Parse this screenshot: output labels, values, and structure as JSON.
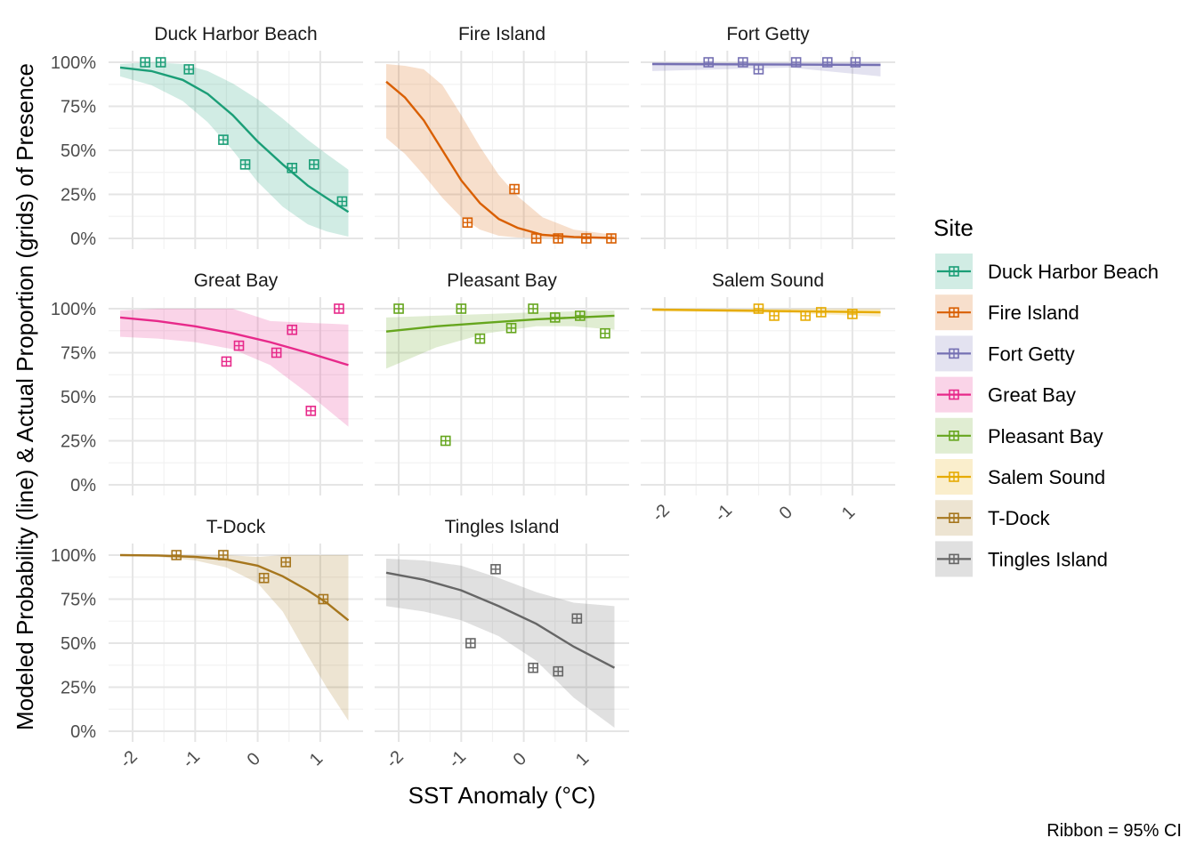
{
  "chart_data": {
    "type": "line",
    "x_label": "SST Anomaly (°C)",
    "y_label": "Modeled Probability (line) & Actual Proportion (grids) of Presence",
    "x_ticks": [
      -2,
      -1,
      0,
      1
    ],
    "x_tick_labels": [
      "-2",
      "-1",
      "0",
      "1"
    ],
    "x_range": [
      -2.2,
      1.5
    ],
    "y_range": [
      0,
      1
    ],
    "y_ticks": [
      0,
      0.25,
      0.5,
      0.75,
      1
    ],
    "y_tick_labels": [
      "0%",
      "25%",
      "50%",
      "75%",
      "100%"
    ],
    "legend_title": "Site",
    "legend_position": "right",
    "caption": "Ribbon = 95% CI",
    "grid": true,
    "panels": [
      {
        "name": "Duck Harbor Beach",
        "color": "#1B9E77",
        "curve": [
          [
            -2.2,
            0.97
          ],
          [
            -1.7,
            0.95
          ],
          [
            -1.2,
            0.9
          ],
          [
            -0.8,
            0.82
          ],
          [
            -0.4,
            0.7
          ],
          [
            0,
            0.55
          ],
          [
            0.4,
            0.42
          ],
          [
            0.8,
            0.3
          ],
          [
            1.1,
            0.23
          ],
          [
            1.45,
            0.15
          ]
        ],
        "lower": [
          [
            -2.2,
            0.92
          ],
          [
            -1.7,
            0.87
          ],
          [
            -1.2,
            0.78
          ],
          [
            -0.8,
            0.66
          ],
          [
            -0.4,
            0.5
          ],
          [
            0,
            0.32
          ],
          [
            0.4,
            0.18
          ],
          [
            0.8,
            0.08
          ],
          [
            1.1,
            0.04
          ],
          [
            1.45,
            0.01
          ]
        ],
        "upper": [
          [
            -2.2,
            0.99
          ],
          [
            -1.7,
            1.0
          ],
          [
            -1.2,
            0.99
          ],
          [
            -0.8,
            0.95
          ],
          [
            -0.4,
            0.88
          ],
          [
            0,
            0.79
          ],
          [
            0.4,
            0.68
          ],
          [
            0.8,
            0.56
          ],
          [
            1.1,
            0.48
          ],
          [
            1.45,
            0.39
          ]
        ],
        "points": [
          [
            -1.8,
            1.0
          ],
          [
            -1.55,
            1.0
          ],
          [
            -1.1,
            0.96
          ],
          [
            -0.55,
            0.56
          ],
          [
            -0.2,
            0.42
          ],
          [
            0.55,
            0.4
          ],
          [
            0.9,
            0.42
          ],
          [
            1.35,
            0.21
          ]
        ]
      },
      {
        "name": "Fire Island",
        "color": "#D95F02",
        "curve": [
          [
            -2.2,
            0.89
          ],
          [
            -1.9,
            0.8
          ],
          [
            -1.6,
            0.67
          ],
          [
            -1.3,
            0.5
          ],
          [
            -1.0,
            0.33
          ],
          [
            -0.7,
            0.2
          ],
          [
            -0.4,
            0.11
          ],
          [
            -0.1,
            0.06
          ],
          [
            0.3,
            0.02
          ],
          [
            0.8,
            0.008
          ],
          [
            1.45,
            0.002
          ]
        ],
        "lower": [
          [
            -2.2,
            0.57
          ],
          [
            -1.9,
            0.48
          ],
          [
            -1.6,
            0.36
          ],
          [
            -1.3,
            0.23
          ],
          [
            -1.0,
            0.12
          ],
          [
            -0.7,
            0.05
          ],
          [
            -0.4,
            0.015
          ],
          [
            -0.1,
            0.005
          ],
          [
            0.3,
            0
          ],
          [
            0.8,
            0
          ],
          [
            1.45,
            0
          ]
        ],
        "upper": [
          [
            -2.2,
            0.99
          ],
          [
            -1.9,
            0.98
          ],
          [
            -1.6,
            0.96
          ],
          [
            -1.3,
            0.87
          ],
          [
            -1.0,
            0.7
          ],
          [
            -0.7,
            0.52
          ],
          [
            -0.4,
            0.36
          ],
          [
            -0.1,
            0.24
          ],
          [
            0.3,
            0.12
          ],
          [
            0.8,
            0.05
          ],
          [
            1.45,
            0.02
          ]
        ],
        "points": [
          [
            -0.9,
            0.09
          ],
          [
            -0.15,
            0.28
          ],
          [
            0.2,
            0.0
          ],
          [
            0.55,
            0.0
          ],
          [
            1.0,
            0.0
          ],
          [
            1.4,
            0.0
          ]
        ]
      },
      {
        "name": "Fort Getty",
        "color": "#7570B3",
        "curve": [
          [
            -2.2,
            0.99
          ],
          [
            1.45,
            0.985
          ]
        ],
        "lower": [
          [
            -2.2,
            0.95
          ],
          [
            0,
            0.97
          ],
          [
            1.45,
            0.92
          ]
        ],
        "upper": [
          [
            -2.2,
            1.0
          ],
          [
            1.45,
            1.0
          ]
        ],
        "points": [
          [
            -1.3,
            1.0
          ],
          [
            -0.75,
            1.0
          ],
          [
            -0.5,
            0.96
          ],
          [
            0.1,
            1.0
          ],
          [
            0.6,
            1.0
          ],
          [
            1.05,
            1.0
          ]
        ]
      },
      {
        "name": "Great Bay",
        "color": "#E7298A",
        "curve": [
          [
            -2.2,
            0.95
          ],
          [
            -1.6,
            0.93
          ],
          [
            -1.0,
            0.9
          ],
          [
            -0.4,
            0.86
          ],
          [
            0.2,
            0.81
          ],
          [
            0.8,
            0.75
          ],
          [
            1.45,
            0.68
          ]
        ],
        "lower": [
          [
            -2.2,
            0.84
          ],
          [
            -1.6,
            0.83
          ],
          [
            -1.0,
            0.81
          ],
          [
            -0.4,
            0.77
          ],
          [
            0.2,
            0.68
          ],
          [
            0.8,
            0.52
          ],
          [
            1.45,
            0.33
          ]
        ],
        "upper": [
          [
            -2.2,
            0.99
          ],
          [
            -1.6,
            1.0
          ],
          [
            -1.0,
            1.0
          ],
          [
            -0.4,
            1.0
          ],
          [
            0.2,
            0.93
          ],
          [
            0.8,
            0.92
          ],
          [
            1.45,
            0.91
          ]
        ],
        "points": [
          [
            -0.5,
            0.7
          ],
          [
            -0.3,
            0.79
          ],
          [
            0.3,
            0.75
          ],
          [
            0.55,
            0.88
          ],
          [
            0.85,
            0.42
          ],
          [
            1.3,
            1.0
          ]
        ]
      },
      {
        "name": "Pleasant Bay",
        "color": "#66A61E",
        "curve": [
          [
            -2.2,
            0.87
          ],
          [
            -1.4,
            0.9
          ],
          [
            -0.6,
            0.92
          ],
          [
            0.2,
            0.94
          ],
          [
            1.45,
            0.96
          ]
        ],
        "lower": [
          [
            -2.2,
            0.66
          ],
          [
            -1.4,
            0.78
          ],
          [
            -0.6,
            0.86
          ],
          [
            0.2,
            0.9
          ],
          [
            0.8,
            0.9
          ],
          [
            1.45,
            0.88
          ]
        ],
        "upper": [
          [
            -2.2,
            0.95
          ],
          [
            -1.4,
            0.96
          ],
          [
            -0.6,
            0.97
          ],
          [
            0.2,
            0.98
          ],
          [
            1.45,
            0.99
          ]
        ],
        "points": [
          [
            -2.0,
            1.0
          ],
          [
            -1.25,
            0.25
          ],
          [
            -1.0,
            1.0
          ],
          [
            -0.7,
            0.83
          ],
          [
            -0.2,
            0.89
          ],
          [
            0.15,
            1.0
          ],
          [
            0.5,
            0.95
          ],
          [
            0.9,
            0.96
          ],
          [
            1.3,
            0.86
          ]
        ]
      },
      {
        "name": "Salem Sound",
        "color": "#E6AB02",
        "curve": [
          [
            -2.2,
            0.995
          ],
          [
            1.45,
            0.98
          ]
        ],
        "lower": [
          [
            -2.2,
            0.985
          ],
          [
            0,
            0.975
          ],
          [
            1.45,
            0.955
          ]
        ],
        "upper": [
          [
            -2.2,
            1.0
          ],
          [
            1.45,
            1.0
          ]
        ],
        "points": [
          [
            -0.5,
            1.0
          ],
          [
            -0.25,
            0.96
          ],
          [
            0.25,
            0.96
          ],
          [
            0.5,
            0.98
          ],
          [
            1.0,
            0.97
          ]
        ]
      },
      {
        "name": "T-Dock",
        "color": "#A6761D",
        "curve": [
          [
            -2.2,
            1.0
          ],
          [
            -1.6,
            0.998
          ],
          [
            -1.0,
            0.99
          ],
          [
            -0.5,
            0.975
          ],
          [
            0,
            0.94
          ],
          [
            0.4,
            0.88
          ],
          [
            0.8,
            0.8
          ],
          [
            1.1,
            0.73
          ],
          [
            1.45,
            0.63
          ]
        ],
        "lower": [
          [
            -2.2,
            0.995
          ],
          [
            -1.6,
            0.99
          ],
          [
            -1.0,
            0.97
          ],
          [
            -0.5,
            0.93
          ],
          [
            0,
            0.84
          ],
          [
            0.4,
            0.68
          ],
          [
            0.8,
            0.43
          ],
          [
            1.1,
            0.25
          ],
          [
            1.45,
            0.06
          ]
        ],
        "upper": [
          [
            -2.2,
            1.0
          ],
          [
            -0.5,
            1.0
          ],
          [
            0,
            0.99
          ],
          [
            0.4,
            1.0
          ],
          [
            0.8,
            1.0
          ],
          [
            1.45,
            1.0
          ]
        ],
        "points": [
          [
            -1.3,
            1.0
          ],
          [
            -0.55,
            1.0
          ],
          [
            0.1,
            0.87
          ],
          [
            0.45,
            0.96
          ],
          [
            1.05,
            0.75
          ]
        ]
      },
      {
        "name": "Tingles Island",
        "color": "#666666",
        "curve": [
          [
            -2.2,
            0.9
          ],
          [
            -1.6,
            0.86
          ],
          [
            -1.0,
            0.8
          ],
          [
            -0.4,
            0.71
          ],
          [
            0.2,
            0.61
          ],
          [
            0.8,
            0.48
          ],
          [
            1.45,
            0.36
          ]
        ],
        "lower": [
          [
            -2.2,
            0.71
          ],
          [
            -1.6,
            0.68
          ],
          [
            -1.0,
            0.63
          ],
          [
            -0.4,
            0.54
          ],
          [
            0.2,
            0.4
          ],
          [
            0.8,
            0.19
          ],
          [
            1.45,
            0.02
          ]
        ],
        "upper": [
          [
            -2.2,
            0.98
          ],
          [
            -1.6,
            0.97
          ],
          [
            -1.0,
            0.94
          ],
          [
            -0.4,
            0.87
          ],
          [
            0.2,
            0.79
          ],
          [
            0.8,
            0.73
          ],
          [
            1.45,
            0.71
          ]
        ],
        "points": [
          [
            -0.85,
            0.5
          ],
          [
            -0.45,
            0.92
          ],
          [
            0.15,
            0.36
          ],
          [
            0.55,
            0.34
          ],
          [
            0.85,
            0.64
          ]
        ]
      }
    ]
  }
}
